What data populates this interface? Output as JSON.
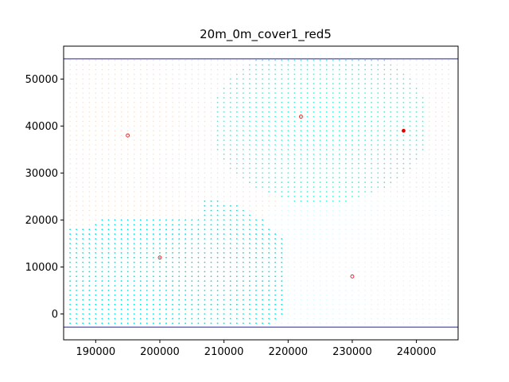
{
  "chart_data": {
    "type": "scatter",
    "title": "20m_0m_cover1_red5",
    "xlabel": "",
    "ylabel": "",
    "xlim": [
      185000,
      246500
    ],
    "ylim": [
      -5500,
      57000
    ],
    "xticks": [
      190000,
      200000,
      210000,
      220000,
      230000,
      240000
    ],
    "yticks": [
      0,
      10000,
      20000,
      30000,
      40000,
      50000
    ],
    "xtick_labels": [
      "190000",
      "200000",
      "210000",
      "220000",
      "230000",
      "240000"
    ],
    "ytick_labels": [
      "0",
      "10000",
      "20000",
      "30000",
      "40000",
      "50000"
    ],
    "grid": false,
    "grid_points": {
      "x_range": [
        186000,
        245000
      ],
      "y_range": [
        -2000,
        54000
      ],
      "spacing": 1000
    },
    "regions": [
      {
        "name": "",
        "color": "#ffe8d0",
        "description_values": {
          "x_range": [
            186000,
            215000
          ],
          "y_range": [
            20000,
            54000
          ]
        }
      },
      {
        "name": "",
        "color": "#00dede",
        "description_values": {
          "x_range": [
            186000,
            219000
          ],
          "y_range": [
            -2000,
            27000
          ]
        }
      },
      {
        "name": "",
        "color": "#33ffdd",
        "description_values": {
          "x_range": [
            209000,
            242000
          ],
          "y_range": [
            21000,
            54000
          ]
        }
      },
      {
        "name": "",
        "color": "#d6fbff",
        "description_values": {
          "x_range": [
            219000,
            245000
          ],
          "y_range": [
            -2000,
            25000
          ]
        }
      }
    ],
    "centers": [
      {
        "x": 195000,
        "y": 38000,
        "filled": false
      },
      {
        "x": 200000,
        "y": 12000,
        "filled": false
      },
      {
        "x": 222000,
        "y": 42000,
        "filled": false
      },
      {
        "x": 238000,
        "y": 39000,
        "filled": true
      },
      {
        "x": 230000,
        "y": 8000,
        "filled": false
      }
    ],
    "hlines": [
      54300,
      -2800
    ],
    "colors": {
      "region_peach": "#f6e2cc",
      "region_cyan": "#00e0e0",
      "region_turquoise": "#3ff2d8",
      "region_pale": "#d2f8f8",
      "center_marker": "#e00000",
      "hline": "#00008b"
    }
  }
}
